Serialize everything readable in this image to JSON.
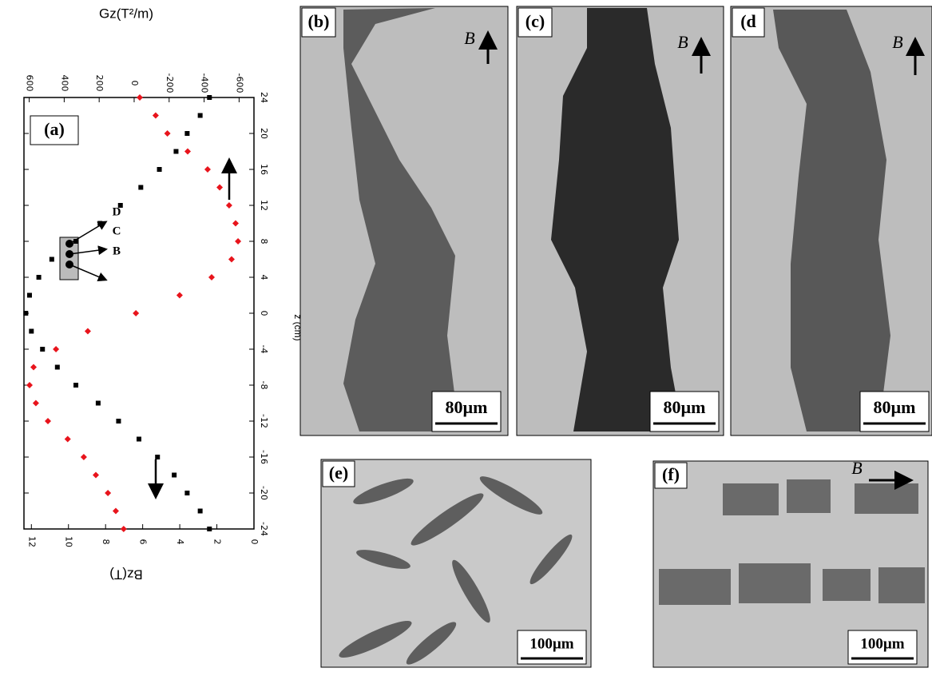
{
  "chart_data": {
    "type": "scatter",
    "xlabel": "z (cm)",
    "ylabel": "Bz(T)",
    "y2label": "Gz(T²/m)",
    "x": [
      -24,
      -22,
      -20,
      -18,
      -16,
      -14,
      -12,
      -10,
      -8,
      -6,
      -4,
      -2,
      0,
      2,
      4,
      6,
      8,
      10,
      12,
      14,
      16,
      18,
      20,
      22,
      24
    ],
    "xlim": [
      -24,
      24
    ],
    "xticks": [
      24,
      20,
      16,
      12,
      8,
      4,
      0,
      -4,
      -8,
      -12,
      -16,
      -20,
      -24
    ],
    "ylim": [
      0,
      12.4
    ],
    "yticks": [
      0,
      2,
      4,
      6,
      8,
      10,
      12
    ],
    "y2lim": [
      630,
      -685
    ],
    "y2ticks": [
      600,
      400,
      200,
      0,
      -200,
      -400,
      -600
    ],
    "series": [
      {
        "color": "#000000",
        "values": [
          2.4,
          2.9,
          3.6,
          4.3,
          5.2,
          6.2,
          7.3,
          8.4,
          9.6,
          10.6,
          11.4,
          12.0,
          12.3,
          12.1,
          11.6,
          10.9,
          9.6,
          8.3,
          7.2,
          6.1,
          5.1,
          4.2,
          3.6,
          2.9,
          2.4
        ]
      },
      {
        "color": "#e8141c",
        "axis": "y2",
        "values": [
          60,
          105,
          150,
          219,
          288,
          380,
          493,
          562,
          598,
          575,
          447,
          265,
          -10,
          -260,
          -443,
          -557,
          -594,
          -580,
          -543,
          -489,
          -420,
          -306,
          -190,
          -123,
          -32
        ]
      }
    ],
    "annotations": [
      "(a)",
      "D",
      "C",
      "B"
    ]
  },
  "panels": [
    {
      "label": "(b)",
      "field": "B",
      "scale_bar": "80µm"
    },
    {
      "label": "(c)",
      "field": "B",
      "scale_bar": "80µm"
    },
    {
      "label": "(d",
      "field": "B",
      "scale_bar": "80µm"
    },
    {
      "label": "(e)",
      "scale_bar": "100µm"
    },
    {
      "label": "(f)",
      "field": "B",
      "scale_bar": "100µm"
    }
  ]
}
